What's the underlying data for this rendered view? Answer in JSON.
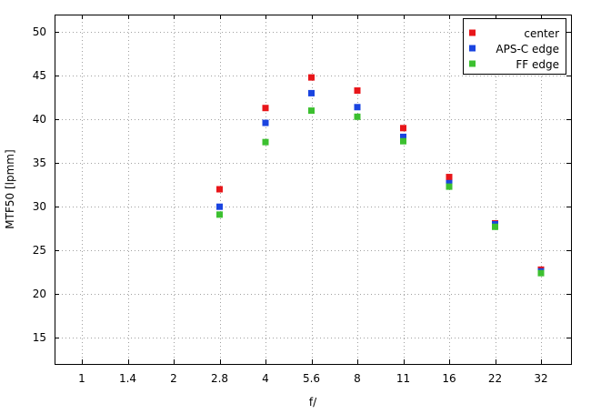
{
  "chart_data": {
    "type": "scatter",
    "xlabel": "f/",
    "ylabel": "MTF50 [lpmm]",
    "categories": [
      "1",
      "1.4",
      "2",
      "2.8",
      "4",
      "5.6",
      "8",
      "11",
      "16",
      "22",
      "32"
    ],
    "ylim": [
      12,
      52
    ],
    "yticks": [
      15,
      20,
      25,
      30,
      35,
      40,
      45,
      50
    ],
    "grid": true,
    "legend_position": "top-right",
    "series": [
      {
        "name": "center",
        "color": "#e8161a",
        "x": [
          "2.8",
          "4",
          "5.6",
          "8",
          "11",
          "16",
          "22",
          "32"
        ],
        "values": [
          32.0,
          41.3,
          44.8,
          43.3,
          39.0,
          33.4,
          28.1,
          22.8
        ]
      },
      {
        "name": "APS-C edge",
        "color": "#1a44e0",
        "x": [
          "2.8",
          "4",
          "5.6",
          "8",
          "11",
          "16",
          "22",
          "32"
        ],
        "values": [
          30.0,
          39.6,
          43.0,
          41.4,
          38.0,
          32.7,
          28.0,
          22.6
        ]
      },
      {
        "name": "FF edge",
        "color": "#3cc030",
        "x": [
          "2.8",
          "4",
          "5.6",
          "8",
          "11",
          "16",
          "22",
          "32"
        ],
        "values": [
          29.1,
          37.4,
          41.0,
          40.3,
          37.5,
          32.3,
          27.7,
          22.4
        ]
      }
    ]
  }
}
